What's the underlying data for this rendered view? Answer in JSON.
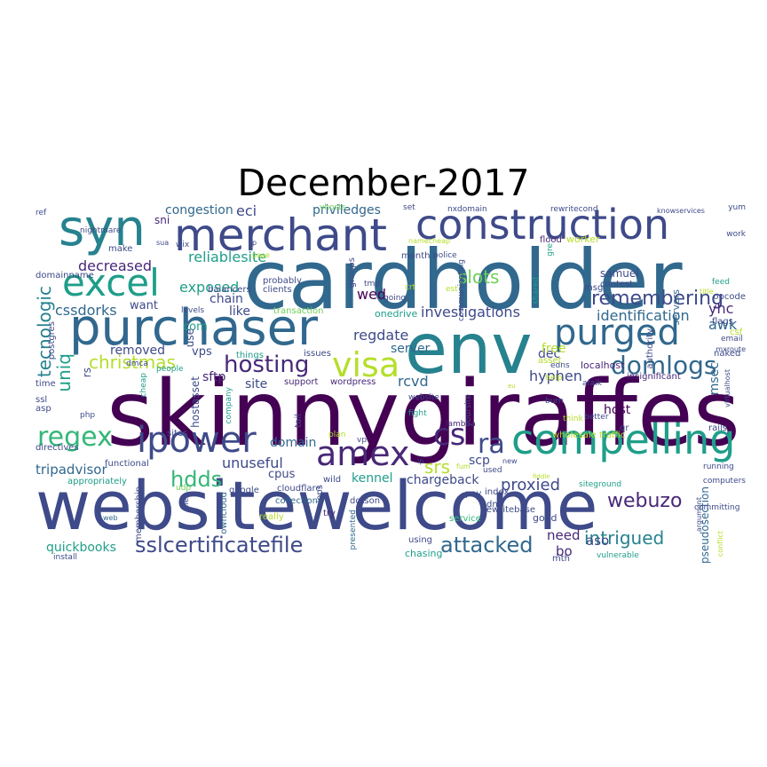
{
  "title": "December-2017",
  "palette": [
    "#440154",
    "#482878",
    "#3e4a89",
    "#31688e",
    "#26828e",
    "#1f9e89",
    "#35b779",
    "#6ece58",
    "#b5de2b",
    "#fde725"
  ],
  "words": [
    {
      "text": "skinnygiraffes",
      "color": "#440154"
    },
    {
      "text": "websitewelcome",
      "color": "#3e4a89"
    },
    {
      "text": "cardholder",
      "color": "#31688e"
    },
    {
      "text": "env",
      "color": "#26828e"
    },
    {
      "text": "purchaser",
      "color": "#31688e"
    },
    {
      "text": "construction",
      "color": "#3e4a89"
    },
    {
      "text": "merchant",
      "color": "#3e4a89"
    },
    {
      "text": "syn",
      "color": "#26828e"
    },
    {
      "text": "compelling",
      "color": "#1f9e89"
    },
    {
      "text": "excel",
      "color": "#1f9e89"
    },
    {
      "text": "purged",
      "color": "#31688e"
    },
    {
      "text": "regex",
      "color": "#35b779"
    },
    {
      "text": "ipower",
      "color": "#3e4a89"
    },
    {
      "text": "amex",
      "color": "#482878"
    },
    {
      "text": "visa",
      "color": "#b5de2b"
    },
    {
      "text": "cs",
      "color": "#482878"
    },
    {
      "text": "ra",
      "color": "#3e4a89"
    },
    {
      "text": "hosting",
      "color": "#482878"
    },
    {
      "text": "domlogs",
      "color": "#31688e"
    },
    {
      "text": "remembering",
      "color": "#3e4a89"
    },
    {
      "text": "sslcertificatefile",
      "color": "#3e4a89"
    },
    {
      "text": "attacked",
      "color": "#31688e"
    },
    {
      "text": "intrigued",
      "color": "#26828e"
    },
    {
      "text": "webuzo",
      "color": "#482878"
    },
    {
      "text": "hdds",
      "color": "#35b779"
    },
    {
      "text": "srs",
      "color": "#b5de2b"
    },
    {
      "text": "christmas",
      "color": "#b5de2b"
    },
    {
      "text": "slots",
      "color": "#6ece58"
    },
    {
      "text": "investigations",
      "color": "#3e4a89"
    },
    {
      "text": "tecnologic",
      "color": "#26828e"
    },
    {
      "text": "uniq",
      "color": "#1f9e89"
    },
    {
      "text": "identification",
      "color": "#31688e"
    },
    {
      "text": "reliablesite",
      "color": "#1f9e89"
    },
    {
      "text": "decreased",
      "color": "#482878"
    },
    {
      "text": "exposed",
      "color": "#1f9e89"
    },
    {
      "text": "cssdorks",
      "color": "#31688e"
    },
    {
      "text": "regdate",
      "color": "#3e4a89"
    },
    {
      "text": "rcvd",
      "color": "#31688e"
    },
    {
      "text": "hyphen",
      "color": "#3e4a89"
    },
    {
      "text": "proxied",
      "color": "#3e4a89"
    },
    {
      "text": "unuseful",
      "color": "#3e4a89"
    },
    {
      "text": "tripadvisor",
      "color": "#31688e"
    },
    {
      "text": "kennel",
      "color": "#1f9e89"
    },
    {
      "text": "quickbooks",
      "color": "#1f9e89"
    },
    {
      "text": "eci",
      "color": "#3e4a89"
    },
    {
      "text": "wed",
      "color": "#440154"
    },
    {
      "text": "yhc",
      "color": "#482878"
    },
    {
      "text": "awk",
      "color": "#31688e"
    },
    {
      "text": "msec",
      "color": "#31688e"
    },
    {
      "text": "scp",
      "color": "#3e4a89"
    },
    {
      "text": "chargeback",
      "color": "#3e4a89"
    },
    {
      "text": "domain",
      "color": "#31688e"
    },
    {
      "text": "host",
      "color": "#440154"
    },
    {
      "text": "dec",
      "color": "#3e4a89"
    },
    {
      "text": "need",
      "color": "#482878"
    },
    {
      "text": "aso",
      "color": "#3e4a89"
    },
    {
      "text": "bo",
      "color": "#482878"
    },
    {
      "text": "congestion",
      "color": "#31688e"
    },
    {
      "text": "priviledges",
      "color": "#31688e"
    },
    {
      "text": "chain",
      "color": "#3e4a89"
    },
    {
      "text": "sni",
      "color": "#482878"
    },
    {
      "text": "removed",
      "color": "#3e4a89"
    },
    {
      "text": "sftp",
      "color": "#482878"
    },
    {
      "text": "vps",
      "color": "#3e4a89"
    },
    {
      "text": "like",
      "color": "#3e4a89"
    },
    {
      "text": "want",
      "color": "#3e4a89"
    },
    {
      "text": "server",
      "color": "#31688e"
    },
    {
      "text": "free",
      "color": "#b5de2b"
    },
    {
      "text": "cpus",
      "color": "#3e4a89"
    },
    {
      "text": "site",
      "color": "#3e4a89"
    },
    {
      "text": "com",
      "color": "#1f9e89"
    },
    {
      "text": "use",
      "color": "#3e4a89"
    },
    {
      "text": "rs",
      "color": "#3e4a89"
    },
    {
      "text": "hostasset",
      "color": "#3e4a89"
    },
    {
      "text": "pseudosection",
      "color": "#31688e"
    },
    {
      "text": "servers",
      "color": "#31688e"
    },
    {
      "text": "flood",
      "color": "#482878"
    },
    {
      "text": "worker",
      "color": "#b5de2b"
    },
    {
      "text": "samuel",
      "color": "#3e4a89"
    },
    {
      "text": "contest",
      "color": "#3e4a89"
    },
    {
      "text": "msg",
      "color": "#3e4a89"
    },
    {
      "text": "collections",
      "color": "#31688e"
    },
    {
      "text": "dotson",
      "color": "#3e4a89"
    },
    {
      "text": "onedrive",
      "color": "#1f9e89"
    },
    {
      "text": "transaction",
      "color": "#6ece58"
    },
    {
      "text": "wordpress",
      "color": "#482878"
    },
    {
      "text": "support",
      "color": "#482878"
    },
    {
      "text": "localhost",
      "color": "#482878"
    },
    {
      "text": "insignificant",
      "color": "#482878"
    },
    {
      "text": "lambda",
      "color": "#482878"
    },
    {
      "text": "wholesale traffic",
      "color": "#b5de2b"
    },
    {
      "text": "rewritebase",
      "color": "#3e4a89"
    },
    {
      "text": "using",
      "color": "#3e4a89"
    },
    {
      "text": "chasing",
      "color": "#1f9e89"
    },
    {
      "text": "mth",
      "color": "#3e4a89"
    },
    {
      "text": "good",
      "color": "#3e4a89"
    },
    {
      "text": "service",
      "color": "#35b779"
    },
    {
      "text": "really",
      "color": "#b5de2b"
    },
    {
      "text": "try",
      "color": "#482878"
    },
    {
      "text": "presented",
      "color": "#31688e"
    },
    {
      "text": "wild",
      "color": "#3e4a89"
    },
    {
      "text": "google",
      "color": "#3e4a89"
    },
    {
      "text": "cloudflare",
      "color": "#3e4a89"
    },
    {
      "text": "functional",
      "color": "#3e4a89"
    },
    {
      "text": "appropriately",
      "color": "#1f9e89"
    },
    {
      "text": "membership",
      "color": "#3e4a89"
    },
    {
      "text": "owncloud",
      "color": "#31688e"
    },
    {
      "text": "files",
      "color": "#3e4a89"
    },
    {
      "text": "install",
      "color": "#3e4a89"
    },
    {
      "text": "web",
      "color": "#31688e"
    },
    {
      "text": "udp",
      "color": "#6ece58"
    },
    {
      "text": "directives",
      "color": "#3e4a89"
    },
    {
      "text": "asp",
      "color": "#3e4a89"
    },
    {
      "text": "ssl",
      "color": "#3e4a89"
    },
    {
      "text": "time",
      "color": "#3e4a89"
    },
    {
      "text": "postgres",
      "color": "#3e4a89"
    },
    {
      "text": "dmca",
      "color": "#3e4a89"
    },
    {
      "text": "people",
      "color": "#1f9e89"
    },
    {
      "text": "cheap",
      "color": "#1f9e89"
    },
    {
      "text": "sites",
      "color": "#3e4a89"
    },
    {
      "text": "issues",
      "color": "#3e4a89"
    },
    {
      "text": "things",
      "color": "#1f9e89"
    },
    {
      "text": "page",
      "color": "#b5de2b"
    },
    {
      "text": "probably",
      "color": "#3e4a89"
    },
    {
      "text": "clients",
      "color": "#3e4a89"
    },
    {
      "text": "balancers",
      "color": "#3e4a89"
    },
    {
      "text": "levels",
      "color": "#3e4a89"
    },
    {
      "text": "make",
      "color": "#3e4a89"
    },
    {
      "text": "domainname",
      "color": "#3e4a89"
    },
    {
      "text": "nightmare",
      "color": "#3e4a89"
    },
    {
      "text": "ref",
      "color": "#3e4a89"
    },
    {
      "text": "sua",
      "color": "#3e4a89"
    },
    {
      "text": "wix",
      "color": "#3e4a89"
    },
    {
      "text": "p",
      "color": "#3e4a89"
    },
    {
      "text": "vhosts",
      "color": "#6ece58"
    },
    {
      "text": "set",
      "color": "#3e4a89"
    },
    {
      "text": "nxdomain",
      "color": "#3e4a89"
    },
    {
      "text": "rewritecond",
      "color": "#3e4a89"
    },
    {
      "text": "knowservices",
      "color": "#3e4a89"
    },
    {
      "text": "yum",
      "color": "#3e4a89"
    },
    {
      "text": "work",
      "color": "#3e4a89"
    },
    {
      "text": "feed",
      "color": "#1f9e89"
    },
    {
      "text": "opcode",
      "color": "#3e4a89"
    },
    {
      "text": "flags",
      "color": "#3e4a89"
    },
    {
      "text": "email",
      "color": "#3e4a89"
    },
    {
      "text": "naked",
      "color": "#3e4a89"
    },
    {
      "text": "virtualhost",
      "color": "#3e4a89"
    },
    {
      "text": "csf",
      "color": "#b5de2b"
    },
    {
      "text": "rails",
      "color": "#3e4a89"
    },
    {
      "text": "running",
      "color": "#3e4a89"
    },
    {
      "text": "computers",
      "color": "#3e4a89"
    },
    {
      "text": "committing",
      "color": "#3e4a89"
    },
    {
      "text": "argument",
      "color": "#3e4a89"
    },
    {
      "text": "authority",
      "color": "#3e4a89"
    },
    {
      "text": "edns",
      "color": "#3e4a89"
    },
    {
      "text": "asset",
      "color": "#b5de2b"
    },
    {
      "text": "help",
      "color": "#b5de2b"
    },
    {
      "text": "afaik",
      "color": "#3e4a89"
    },
    {
      "text": "burn",
      "color": "#3e4a89"
    },
    {
      "text": "think",
      "color": "#b5de2b"
    },
    {
      "text": "qr",
      "color": "#3e4a89"
    },
    {
      "text": "better",
      "color": "#3e4a89"
    },
    {
      "text": "siteground",
      "color": "#1f9e89"
    },
    {
      "text": "index",
      "color": "#3e4a89"
    },
    {
      "text": "dns",
      "color": "#3e4a89"
    },
    {
      "text": "pay",
      "color": "#3e4a89"
    },
    {
      "text": "fum",
      "color": "#b5de2b"
    },
    {
      "text": "used",
      "color": "#3e4a89"
    },
    {
      "text": "new",
      "color": "#3e4a89"
    },
    {
      "text": "ip",
      "color": "#3e4a89"
    },
    {
      "text": "vp",
      "color": "#3e4a89"
    },
    {
      "text": "iops",
      "color": "#3e4a89"
    },
    {
      "text": "plan",
      "color": "#b5de2b"
    },
    {
      "text": "fight",
      "color": "#1f9e89"
    },
    {
      "text": "yoursite",
      "color": "#3e4a89"
    },
    {
      "text": "website",
      "color": "#3e4a89"
    },
    {
      "text": "tail",
      "color": "#3e4a89"
    },
    {
      "text": "company",
      "color": "#1f9e89"
    },
    {
      "text": "php",
      "color": "#3e4a89"
    },
    {
      "text": "going",
      "color": "#3e4a89"
    },
    {
      "text": "crt",
      "color": "#b5de2b"
    },
    {
      "text": "est",
      "color": "#b5de2b"
    },
    {
      "text": "shared",
      "color": "#1f9e89"
    },
    {
      "text": "communicating",
      "color": "#3e4a89"
    },
    {
      "text": "month",
      "color": "#3e4a89"
    },
    {
      "text": "police",
      "color": "#3e4a89"
    },
    {
      "text": "groups",
      "color": "#3e4a89"
    },
    {
      "text": "tmp",
      "color": "#3e4a89"
    },
    {
      "text": "namecheap",
      "color": "#b5de2b"
    },
    {
      "text": "gre",
      "color": "#1f9e89"
    },
    {
      "text": "title",
      "color": "#b5de2b"
    },
    {
      "text": "mxroute",
      "color": "#3e4a89"
    },
    {
      "text": "vulnerable",
      "color": "#1f9e89"
    },
    {
      "text": "eu",
      "color": "#b5de2b"
    },
    {
      "text": "conflict",
      "color": "#b5de2b"
    },
    {
      "text": "fiddle",
      "color": "#b5de2b"
    }
  ]
}
